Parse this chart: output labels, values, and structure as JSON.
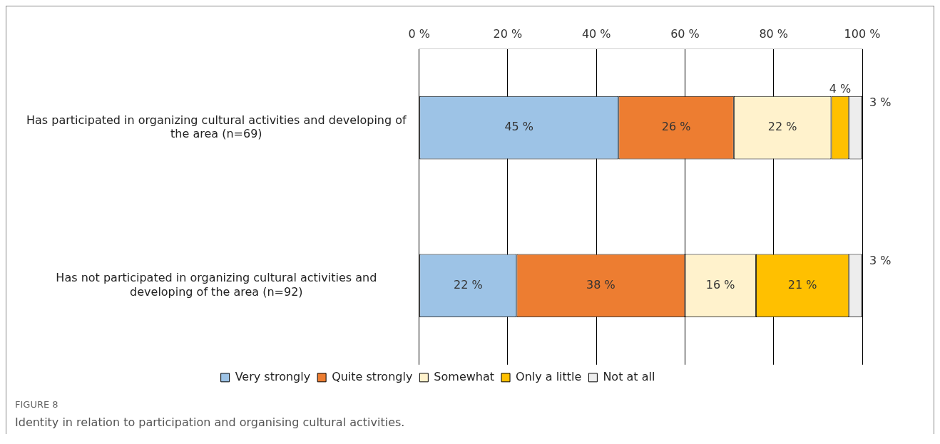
{
  "chart_data": {
    "type": "bar",
    "title": "FIGURE 8",
    "subtitle": "Identity in relation to participation and organising cultural activities.",
    "orientation": "horizontal",
    "stacked": true,
    "categories": [
      "Has participated in organizing cultural activities and developing of the area (n=69)",
      "Has not participated in organizing cultural activities and developing of the area (n=92)"
    ],
    "series": [
      {
        "name": "Very strongly",
        "color": "#9dc3e6",
        "values": [
          45,
          22
        ],
        "value_labels": [
          "45 %",
          "22 %"
        ]
      },
      {
        "name": "Quite strongly",
        "color": "#ed7d31",
        "values": [
          26,
          38
        ],
        "value_labels": [
          "26 %",
          "38 %"
        ]
      },
      {
        "name": "Somewhat",
        "color": "#fff2cc",
        "values": [
          22,
          16
        ],
        "value_labels": [
          "22 %",
          "16 %"
        ]
      },
      {
        "name": "Only a little",
        "color": "#ffc000",
        "values": [
          4,
          21
        ],
        "value_labels": [
          "4 %",
          "21 %"
        ]
      },
      {
        "name": "Not at all",
        "color": "#ededed",
        "values": [
          3,
          3
        ],
        "value_labels": [
          "3 %",
          "3 %"
        ]
      }
    ],
    "xlim": [
      0,
      100
    ],
    "xticks": [
      {
        "value": 0,
        "label": "0 %"
      },
      {
        "value": 20,
        "label": "20 %"
      },
      {
        "value": 40,
        "label": "40 %"
      },
      {
        "value": 60,
        "label": "60 %"
      },
      {
        "value": 80,
        "label": "80 %"
      },
      {
        "value": 100,
        "label": "100 %"
      }
    ],
    "grid": "x",
    "legend": "bottom"
  }
}
